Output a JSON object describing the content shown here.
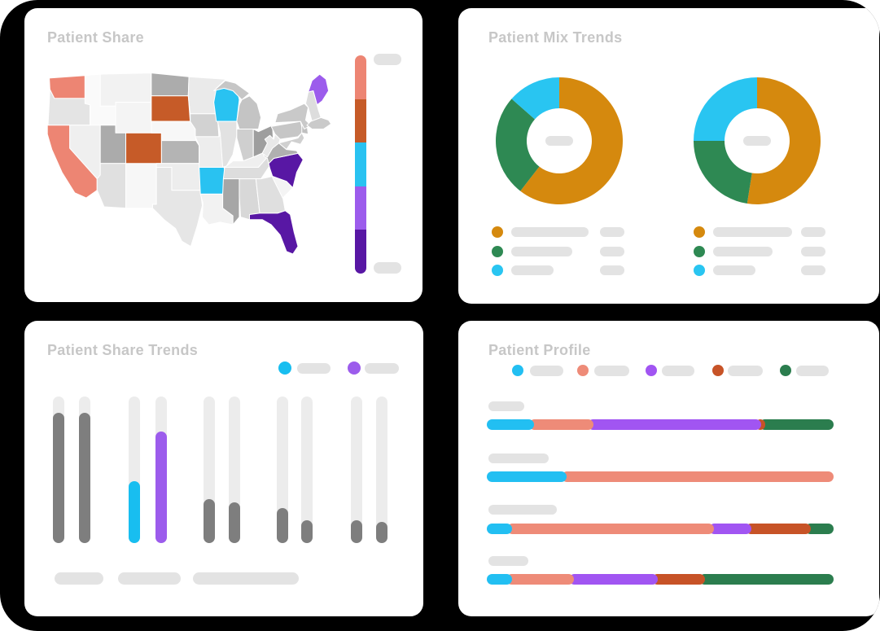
{
  "page": {
    "backdrop_color": "#000000",
    "card_color": "#ffffff",
    "title_color": "#c7c7c7",
    "placeholder_color": "#e3e3e3",
    "track_color": "#ececec"
  },
  "panels": {
    "patient_share": {
      "title": "Patient Share"
    },
    "patient_mix_trends": {
      "title": "Patient Mix Trends"
    },
    "patient_share_trends": {
      "title": "Patient Share Trends"
    },
    "patient_profile": {
      "title": "Patient Profile"
    }
  },
  "chart_data": [
    {
      "id": "patient_share_map",
      "type": "choropleth_map",
      "title": "Patient Share",
      "highlighted_states": [
        {
          "state": "Washington",
          "color": "#ED8573"
        },
        {
          "state": "California",
          "color": "#ED8573"
        },
        {
          "state": "South Dakota",
          "color": "#C65B28"
        },
        {
          "state": "Colorado",
          "color": "#C65B28"
        },
        {
          "state": "Wisconsin",
          "color": "#29C2F1"
        },
        {
          "state": "Arkansas",
          "color": "#29C2F1"
        },
        {
          "state": "Maine",
          "color": "#9C5CEC"
        },
        {
          "state": "North Carolina",
          "color": "#5817A4"
        },
        {
          "state": "Florida",
          "color": "#5817A4"
        }
      ],
      "color_scale": [
        "#ED8573",
        "#C65B28",
        "#29C2F1",
        "#9C5CEC",
        "#5817A4"
      ],
      "scale_end_labels_placeholders": 2
    },
    {
      "id": "patient_mix_trends",
      "type": "donut",
      "title": "Patient Mix Trends",
      "slice_colors": [
        "#D5890E",
        "#2E8953",
        "#29C5F1"
      ],
      "donuts": [
        {
          "values_pct": [
            60.5,
            26.0,
            13.5
          ]
        },
        {
          "values_pct": [
            52.5,
            22.5,
            25.0
          ]
        }
      ],
      "legend_placeholder_rows": 3,
      "center_label_placeholder": true
    },
    {
      "id": "patient_share_trends",
      "type": "bar",
      "title": "Patient Share Trends",
      "ymax_pct": 100,
      "groups": [
        {
          "bars": [
            {
              "color": "#7E7E7E",
              "value_pct": 89
            },
            {
              "color": "#7E7E7E",
              "value_pct": 89
            }
          ]
        },
        {
          "bars": [
            {
              "color": "#18BEF0",
              "value_pct": 42
            },
            {
              "color": "#9C5CEC",
              "value_pct": 76
            }
          ]
        },
        {
          "bars": [
            {
              "color": "#7E7E7E",
              "value_pct": 30
            },
            {
              "color": "#7E7E7E",
              "value_pct": 28
            }
          ]
        },
        {
          "bars": [
            {
              "color": "#7E7E7E",
              "value_pct": 24
            },
            {
              "color": "#7E7E7E",
              "value_pct": 15.5
            }
          ]
        },
        {
          "bars": [
            {
              "color": "#7E7E7E",
              "value_pct": 15.5
            },
            {
              "color": "#7E7E7E",
              "value_pct": 14.5
            }
          ]
        }
      ],
      "legend_colors": [
        "#18BEF0",
        "#9C5CEC"
      ],
      "x_axis_label_placeholders": 3
    },
    {
      "id": "patient_profile",
      "type": "stacked_bar_horizontal",
      "title": "Patient Profile",
      "legend_colors": [
        "#22BFF2",
        "#EE8B78",
        "#A155F2",
        "#C75327",
        "#2B7D4E"
      ],
      "rows": [
        {
          "segments": [
            {
              "color": "#22BFF2",
              "pct": 13.7
            },
            {
              "color": "#EE8B78",
              "pct": 17.0
            },
            {
              "color": "#A155F2",
              "pct": 48.3
            },
            {
              "color": "#C75327",
              "pct": 1.2
            },
            {
              "color": "#2B7D4E",
              "pct": 19.8
            }
          ]
        },
        {
          "segments": [
            {
              "color": "#22BFF2",
              "pct": 23.0
            },
            {
              "color": "#EE8B78",
              "pct": 77.0
            }
          ]
        },
        {
          "segments": [
            {
              "color": "#22BFF2",
              "pct": 7.3
            },
            {
              "color": "#EE8B78",
              "pct": 58.3
            },
            {
              "color": "#A155F2",
              "pct": 10.6
            },
            {
              "color": "#C75327",
              "pct": 17.2
            },
            {
              "color": "#2B7D4E",
              "pct": 6.6
            }
          ]
        },
        {
          "segments": [
            {
              "color": "#22BFF2",
              "pct": 7.2
            },
            {
              "color": "#EE8B78",
              "pct": 18.0
            },
            {
              "color": "#A155F2",
              "pct": 24.0
            },
            {
              "color": "#C75327",
              "pct": 13.6
            },
            {
              "color": "#2B7D4E",
              "pct": 37.2
            }
          ]
        }
      ],
      "row_label_placeholders": 4
    }
  ]
}
